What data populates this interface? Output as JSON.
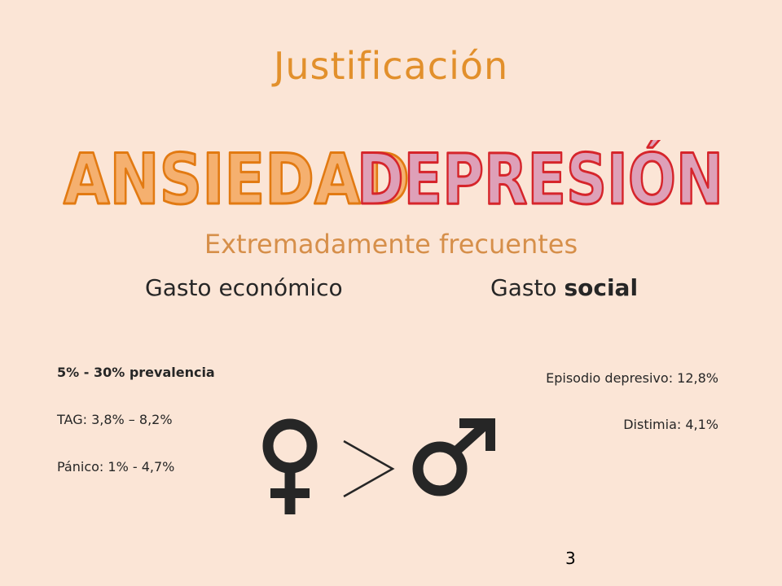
{
  "slide": {
    "title": "Justificación",
    "word_anxiety": "ANSIEDAD",
    "word_depression": "DEPRESIÓN",
    "subtitle": "Extremadamente frecuentes",
    "cost_economic": "Gasto económico",
    "cost_social_prefix": "Gasto ",
    "cost_social_bold": "social",
    "page_number": "3"
  },
  "stats_anxiety": {
    "prevalence": "5% - 30% prevalencia",
    "tag": "TAG: 3,8% – 8,2%",
    "panic": "Pánico: 1% - 4,7%"
  },
  "stats_depression": {
    "episode": "Episodio depresivo:  12,8%",
    "dysthymia": "Distimia: 4,1%"
  },
  "colors": {
    "background": "#fbe5d6",
    "title": "#e2902c",
    "anxiety_fill": "#f5b06f",
    "anxiety_stroke": "#e27a12",
    "depression_fill": "#dea0b8",
    "depression_stroke": "#d6252b",
    "symbols": "#262626"
  },
  "icons": {
    "female": "female-symbol-icon",
    "greater_than": "greater-than-icon",
    "male": "male-symbol-icon"
  }
}
